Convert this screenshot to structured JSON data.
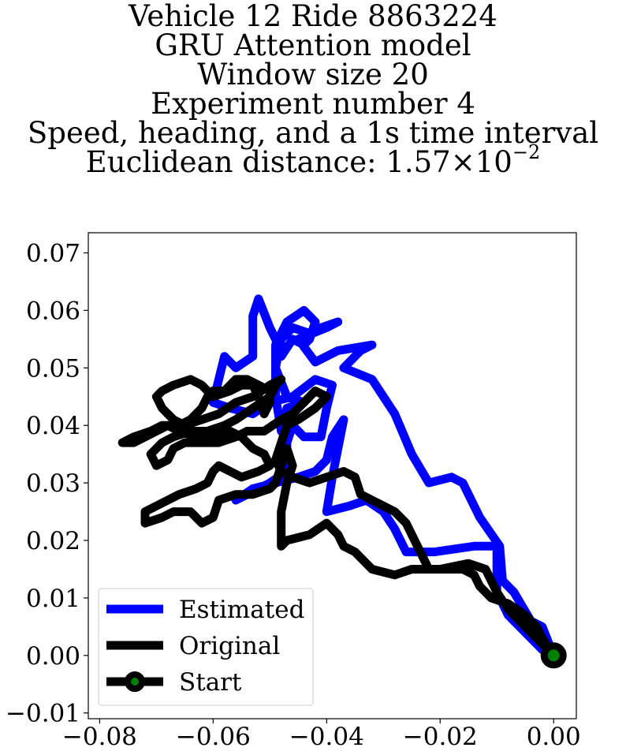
{
  "title": {
    "line1": "Vehicle 12 Ride 8863224",
    "line2": "GRU Attention model",
    "line3": "Window size 20",
    "line4": "Experiment number 4",
    "line5": "Speed, heading, and a 1s time interval",
    "line6_prefix": "Euclidean distance: 1.57",
    "line6_times": "×",
    "line6_base": "10",
    "line6_exp": "−2"
  },
  "chart_data": {
    "type": "line",
    "xlim": [
      -0.082,
      0.004
    ],
    "ylim": [
      -0.011,
      0.0735
    ],
    "x_ticks": [
      -0.08,
      -0.06,
      -0.04,
      -0.02,
      0.0
    ],
    "x_tick_labels": [
      "−0.08",
      "−0.06",
      "−0.04",
      "−0.02",
      "0.00"
    ],
    "y_ticks": [
      -0.01,
      0.0,
      0.01,
      0.02,
      0.03,
      0.04,
      0.05,
      0.06,
      0.07
    ],
    "y_tick_labels": [
      "−0.01",
      "0.00",
      "0.01",
      "0.02",
      "0.03",
      "0.04",
      "0.05",
      "0.06",
      "0.07"
    ],
    "grid": false,
    "legend_position": "lower-left",
    "series": [
      {
        "name": "Estimated",
        "color": "#0000ff",
        "points": [
          [
            0.0,
            0.0
          ],
          [
            -0.002,
            0.005
          ],
          [
            -0.004,
            0.006
          ],
          [
            -0.007,
            0.011
          ],
          [
            -0.009,
            0.013
          ],
          [
            -0.0095,
            0.019
          ],
          [
            -0.013,
            0.024
          ],
          [
            -0.016,
            0.03
          ],
          [
            -0.018,
            0.031
          ],
          [
            -0.022,
            0.03
          ],
          [
            -0.025,
            0.035
          ],
          [
            -0.028,
            0.042
          ],
          [
            -0.032,
            0.048
          ],
          [
            -0.037,
            0.05
          ],
          [
            -0.034,
            0.053
          ],
          [
            -0.032,
            0.054
          ],
          [
            -0.038,
            0.053
          ],
          [
            -0.042,
            0.051
          ],
          [
            -0.045,
            0.055
          ],
          [
            -0.04,
            0.057
          ],
          [
            -0.038,
            0.058
          ],
          [
            -0.041,
            0.057
          ],
          [
            -0.043,
            0.056
          ],
          [
            -0.046,
            0.057
          ],
          [
            -0.048,
            0.055
          ],
          [
            -0.049,
            0.05
          ],
          [
            -0.047,
            0.045
          ],
          [
            -0.044,
            0.044
          ],
          [
            -0.047,
            0.043
          ],
          [
            -0.048,
            0.039
          ],
          [
            -0.049,
            0.045
          ],
          [
            -0.049,
            0.054
          ],
          [
            -0.047,
            0.058
          ],
          [
            -0.044,
            0.06
          ],
          [
            -0.042,
            0.058
          ],
          [
            -0.043,
            0.055
          ],
          [
            -0.044,
            0.054
          ],
          [
            -0.046,
            0.055
          ],
          [
            -0.048,
            0.052
          ],
          [
            -0.049,
            0.055
          ],
          [
            -0.05,
            0.057
          ],
          [
            -0.052,
            0.062
          ],
          [
            -0.053,
            0.059
          ],
          [
            -0.053,
            0.052
          ],
          [
            -0.056,
            0.05
          ],
          [
            -0.058,
            0.052
          ],
          [
            -0.06,
            0.044
          ],
          [
            -0.057,
            0.043
          ],
          [
            -0.053,
            0.042
          ],
          [
            -0.05,
            0.044
          ],
          [
            -0.046,
            0.045
          ],
          [
            -0.042,
            0.048
          ],
          [
            -0.039,
            0.047
          ],
          [
            -0.04,
            0.043
          ],
          [
            -0.041,
            0.038
          ],
          [
            -0.044,
            0.038
          ],
          [
            -0.046,
            0.04
          ],
          [
            -0.047,
            0.037
          ],
          [
            -0.047,
            0.032
          ],
          [
            -0.05,
            0.03
          ],
          [
            -0.054,
            0.028
          ],
          [
            -0.056,
            0.027
          ],
          [
            -0.053,
            0.029
          ],
          [
            -0.049,
            0.03
          ],
          [
            -0.045,
            0.031
          ],
          [
            -0.042,
            0.032
          ],
          [
            -0.04,
            0.034
          ],
          [
            -0.039,
            0.038
          ],
          [
            -0.037,
            0.041
          ],
          [
            -0.038,
            0.036
          ],
          [
            -0.039,
            0.031
          ],
          [
            -0.04,
            0.025
          ],
          [
            -0.036,
            0.026
          ],
          [
            -0.033,
            0.027
          ],
          [
            -0.03,
            0.025
          ],
          [
            -0.028,
            0.022
          ],
          [
            -0.026,
            0.018
          ],
          [
            -0.021,
            0.018
          ],
          [
            -0.014,
            0.019
          ],
          [
            -0.01,
            0.019
          ],
          [
            -0.01,
            0.015
          ],
          [
            -0.01,
            0.011
          ],
          [
            -0.008,
            0.007
          ],
          [
            -0.004,
            0.003
          ],
          [
            -0.002,
            0.001
          ],
          [
            0.0,
            0.0
          ]
        ]
      },
      {
        "name": "Original",
        "color": "#000000",
        "points": [
          [
            0.0,
            0.0
          ],
          [
            -0.002,
            0.002
          ],
          [
            -0.005,
            0.005
          ],
          [
            -0.008,
            0.008
          ],
          [
            -0.01,
            0.011
          ],
          [
            -0.011,
            0.013
          ],
          [
            -0.012,
            0.015
          ],
          [
            -0.015,
            0.016
          ],
          [
            -0.02,
            0.015
          ],
          [
            -0.025,
            0.015
          ],
          [
            -0.028,
            0.014
          ],
          [
            -0.032,
            0.015
          ],
          [
            -0.035,
            0.018
          ],
          [
            -0.037,
            0.019
          ],
          [
            -0.038,
            0.021
          ],
          [
            -0.04,
            0.023
          ],
          [
            -0.043,
            0.021
          ],
          [
            -0.047,
            0.02
          ],
          [
            -0.048,
            0.019
          ],
          [
            -0.048,
            0.021
          ],
          [
            -0.048,
            0.025
          ],
          [
            -0.047,
            0.03
          ],
          [
            -0.046,
            0.033
          ],
          [
            -0.047,
            0.036
          ],
          [
            -0.048,
            0.033
          ],
          [
            -0.049,
            0.03
          ],
          [
            -0.05,
            0.029
          ],
          [
            -0.053,
            0.028
          ],
          [
            -0.056,
            0.028
          ],
          [
            -0.059,
            0.027
          ],
          [
            -0.06,
            0.024
          ],
          [
            -0.062,
            0.023
          ],
          [
            -0.064,
            0.025
          ],
          [
            -0.067,
            0.025
          ],
          [
            -0.069,
            0.024
          ],
          [
            -0.072,
            0.023
          ],
          [
            -0.072,
            0.025
          ],
          [
            -0.068,
            0.027
          ],
          [
            -0.066,
            0.028
          ],
          [
            -0.063,
            0.029
          ],
          [
            -0.061,
            0.03
          ],
          [
            -0.06,
            0.032
          ],
          [
            -0.059,
            0.033
          ],
          [
            -0.057,
            0.032
          ],
          [
            -0.055,
            0.031
          ],
          [
            -0.052,
            0.032
          ],
          [
            -0.05,
            0.033
          ],
          [
            -0.051,
            0.035
          ],
          [
            -0.053,
            0.036
          ],
          [
            -0.055,
            0.038
          ],
          [
            -0.057,
            0.039
          ],
          [
            -0.06,
            0.038
          ],
          [
            -0.063,
            0.038
          ],
          [
            -0.066,
            0.039
          ],
          [
            -0.068,
            0.04
          ],
          [
            -0.07,
            0.039
          ],
          [
            -0.072,
            0.038
          ],
          [
            -0.074,
            0.037
          ],
          [
            -0.076,
            0.037
          ],
          [
            -0.074,
            0.038
          ],
          [
            -0.071,
            0.039
          ],
          [
            -0.069,
            0.04
          ],
          [
            -0.066,
            0.04
          ],
          [
            -0.064,
            0.041
          ],
          [
            -0.062,
            0.043
          ],
          [
            -0.061,
            0.045
          ],
          [
            -0.06,
            0.046
          ],
          [
            -0.058,
            0.046
          ],
          [
            -0.056,
            0.048
          ],
          [
            -0.054,
            0.048
          ],
          [
            -0.052,
            0.047
          ],
          [
            -0.05,
            0.046
          ],
          [
            -0.05,
            0.044
          ],
          [
            -0.051,
            0.042
          ],
          [
            -0.052,
            0.045
          ],
          [
            -0.053,
            0.047
          ],
          [
            -0.055,
            0.047
          ],
          [
            -0.057,
            0.046
          ],
          [
            -0.06,
            0.045
          ],
          [
            -0.062,
            0.047
          ],
          [
            -0.064,
            0.048
          ],
          [
            -0.067,
            0.047
          ],
          [
            -0.069,
            0.046
          ],
          [
            -0.07,
            0.045
          ],
          [
            -0.069,
            0.043
          ],
          [
            -0.067,
            0.041
          ],
          [
            -0.065,
            0.04
          ],
          [
            -0.062,
            0.041
          ],
          [
            -0.059,
            0.042
          ],
          [
            -0.056,
            0.044
          ],
          [
            -0.053,
            0.045
          ],
          [
            -0.05,
            0.047
          ],
          [
            -0.048,
            0.048
          ],
          [
            -0.049,
            0.047
          ],
          [
            -0.05,
            0.045
          ],
          [
            -0.053,
            0.043
          ],
          [
            -0.056,
            0.041
          ],
          [
            -0.058,
            0.04
          ],
          [
            -0.061,
            0.039
          ],
          [
            -0.064,
            0.039
          ],
          [
            -0.067,
            0.038
          ],
          [
            -0.069,
            0.037
          ],
          [
            -0.071,
            0.035
          ],
          [
            -0.07,
            0.033
          ],
          [
            -0.068,
            0.034
          ],
          [
            -0.067,
            0.036
          ],
          [
            -0.065,
            0.037
          ],
          [
            -0.062,
            0.037
          ],
          [
            -0.059,
            0.037
          ],
          [
            -0.056,
            0.038
          ],
          [
            -0.054,
            0.039
          ],
          [
            -0.051,
            0.039
          ],
          [
            -0.048,
            0.041
          ],
          [
            -0.046,
            0.042
          ],
          [
            -0.044,
            0.044
          ],
          [
            -0.042,
            0.046
          ],
          [
            -0.04,
            0.045
          ],
          [
            -0.042,
            0.043
          ],
          [
            -0.045,
            0.041
          ],
          [
            -0.047,
            0.04
          ],
          [
            -0.048,
            0.037
          ],
          [
            -0.049,
            0.034
          ],
          [
            -0.048,
            0.032
          ],
          [
            -0.046,
            0.031
          ],
          [
            -0.043,
            0.03
          ],
          [
            -0.04,
            0.031
          ],
          [
            -0.037,
            0.032
          ],
          [
            -0.035,
            0.031
          ],
          [
            -0.034,
            0.028
          ],
          [
            -0.032,
            0.027
          ],
          [
            -0.03,
            0.026
          ],
          [
            -0.028,
            0.025
          ],
          [
            -0.026,
            0.023
          ],
          [
            -0.025,
            0.021
          ],
          [
            -0.024,
            0.019
          ],
          [
            -0.023,
            0.017
          ],
          [
            -0.022,
            0.015
          ],
          [
            -0.019,
            0.015
          ],
          [
            -0.016,
            0.015
          ],
          [
            -0.014,
            0.014
          ],
          [
            -0.013,
            0.012
          ],
          [
            -0.011,
            0.01
          ],
          [
            -0.008,
            0.009
          ],
          [
            -0.005,
            0.007
          ],
          [
            -0.003,
            0.005
          ],
          [
            -0.002,
            0.003
          ],
          [
            0.0,
            0.0
          ]
        ]
      }
    ],
    "start": {
      "name": "Start",
      "x": 0.0,
      "y": 0.0,
      "fill": "#008000",
      "edge": "#000000"
    },
    "legend": [
      {
        "label": "Estimated",
        "kind": "line",
        "color": "#0000ff"
      },
      {
        "label": "Original",
        "kind": "line",
        "color": "#000000"
      },
      {
        "label": "Start",
        "kind": "marker-line",
        "color": "#000000",
        "marker_fill": "#008000"
      }
    ]
  }
}
